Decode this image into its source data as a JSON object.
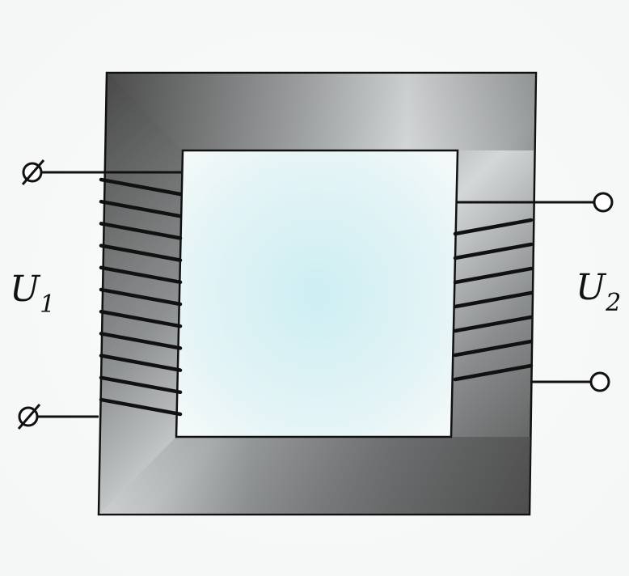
{
  "diagram": {
    "primary_label": {
      "symbol": "U",
      "subscript": "1"
    },
    "secondary_label": {
      "symbol": "U",
      "subscript": "2"
    },
    "primary_turns": 11,
    "secondary_turns": 7,
    "colors": {
      "core_dark": "#4a4a4a",
      "core_light": "#cfd2d3",
      "window": "#dff3f6",
      "wire": "#111111",
      "outline": "#111111"
    }
  }
}
